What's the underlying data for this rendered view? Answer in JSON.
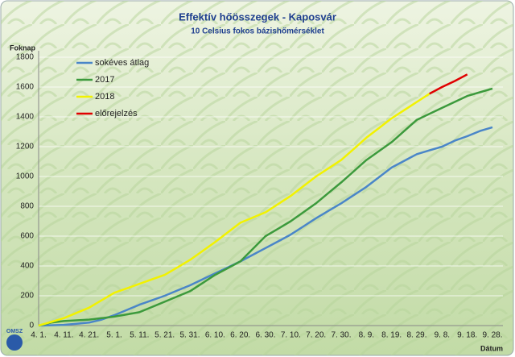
{
  "chart_data": {
    "type": "line",
    "title": "Effektív hőösszegek - Kaposvár",
    "subtitle": "10 Celsius fokos bázishőmérséklet",
    "ylabel": "Foknap",
    "xlabel": "Dátum",
    "logo_text": "OMSZ",
    "categories": [
      "4. 1.",
      null,
      "4. 11.",
      null,
      "4. 21.",
      null,
      "5. 1.",
      null,
      "5. 11.",
      null,
      "5. 21.",
      null,
      "5. 31.",
      null,
      "6. 10.",
      null,
      "6. 20.",
      null,
      "6. 30.",
      null,
      "7. 10.",
      null,
      "7. 20.",
      null,
      "7. 30.",
      null,
      "8. 9.",
      null,
      "8. 19.",
      null,
      "8. 29.",
      null,
      "9. 8.",
      null,
      "9. 18.",
      null,
      "9. 28."
    ],
    "ylim": [
      0,
      1800
    ],
    "yticks": [
      0,
      200,
      400,
      600,
      800,
      1000,
      1200,
      1400,
      1600,
      1800
    ],
    "grid": true,
    "legend": "upper left",
    "series": [
      {
        "name": "sokéves átlag",
        "color": "#4a86c8",
        "values": [
          0,
          2,
          5,
          12,
          20,
          40,
          70,
          105,
          140,
          170,
          200,
          235,
          270,
          310,
          350,
          390,
          430,
          475,
          520,
          565,
          610,
          665,
          720,
          770,
          820,
          875,
          930,
          995,
          1060,
          1105,
          1150,
          1175,
          1200,
          1240,
          1270,
          1305,
          1330
        ]
      },
      {
        "name": "2017",
        "color": "#3c9a3c",
        "values": [
          0,
          20,
          30,
          35,
          40,
          50,
          60,
          75,
          90,
          125,
          160,
          195,
          230,
          285,
          340,
          385,
          430,
          515,
          600,
          650,
          700,
          760,
          820,
          890,
          960,
          1035,
          1110,
          1170,
          1230,
          1305,
          1380,
          1420,
          1460,
          1500,
          1540,
          1565,
          1590
        ]
      },
      {
        "name": "2018",
        "color": "#f2f200",
        "values": [
          0,
          25,
          50,
          85,
          120,
          170,
          220,
          250,
          280,
          310,
          340,
          390,
          440,
          500,
          560,
          625,
          690,
          725,
          760,
          815,
          870,
          935,
          1000,
          1055,
          1110,
          1185,
          1260,
          1325,
          1390,
          1445,
          1500,
          1555,
          null,
          null,
          null,
          null,
          null
        ]
      },
      {
        "name": "előrejelzés",
        "color": "#e00000",
        "values": [
          null,
          null,
          null,
          null,
          null,
          null,
          null,
          null,
          null,
          null,
          null,
          null,
          null,
          null,
          null,
          null,
          null,
          null,
          null,
          null,
          null,
          null,
          null,
          null,
          null,
          null,
          null,
          null,
          null,
          null,
          null,
          1555,
          1600,
          1640,
          1685,
          null,
          null
        ]
      }
    ]
  }
}
